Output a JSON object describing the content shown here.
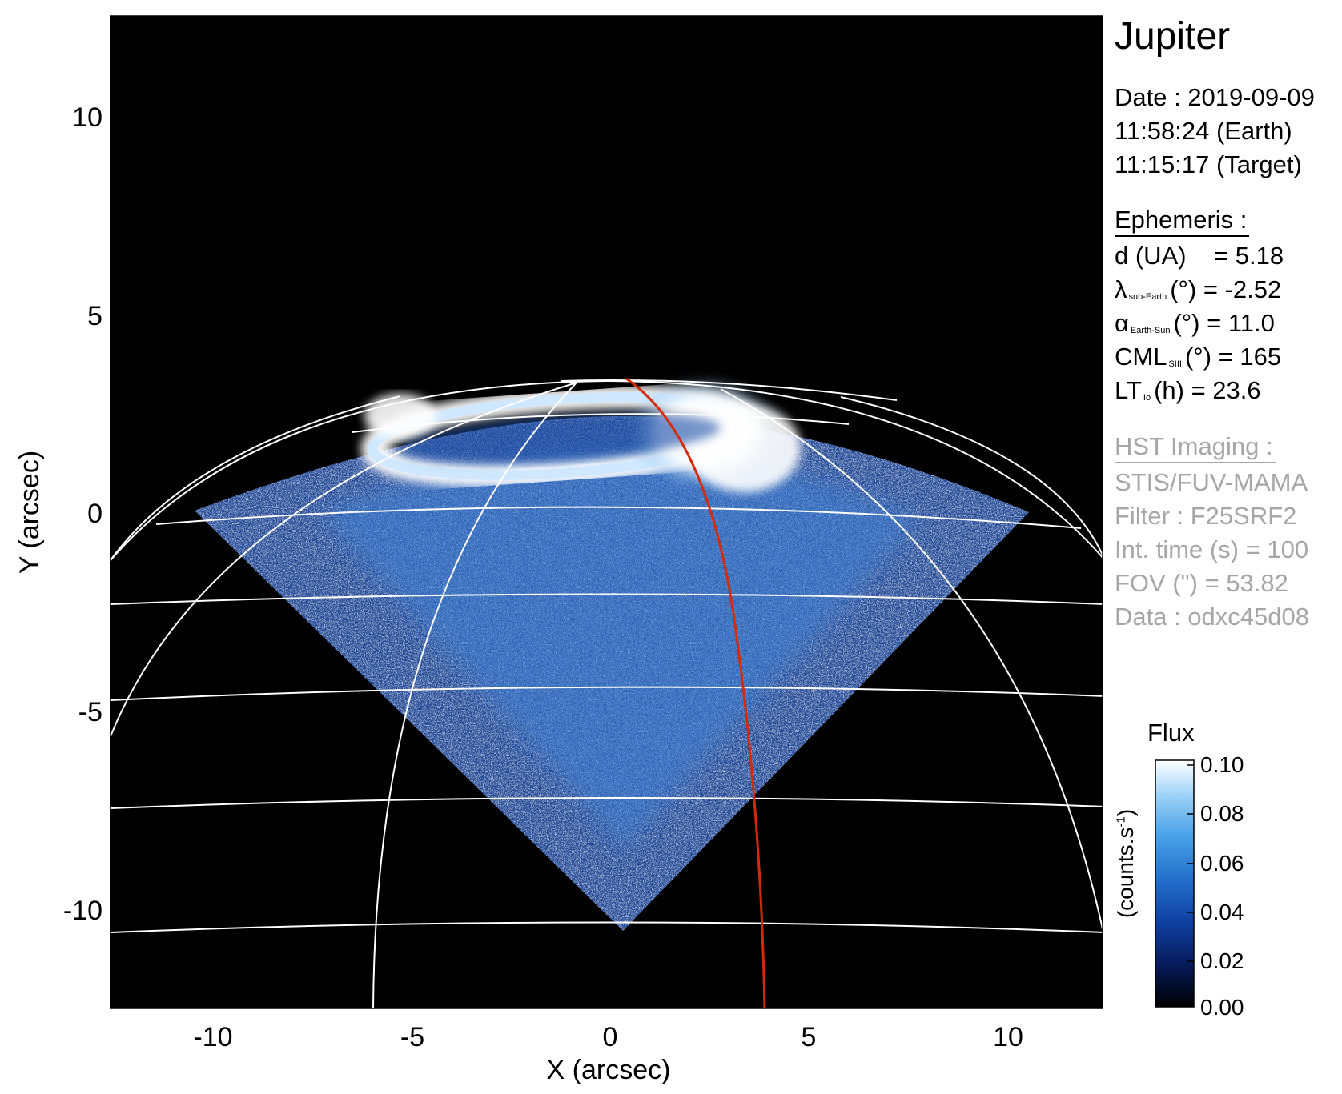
{
  "figure": {
    "title": "Jupiter",
    "observation": {
      "date_line": "Date : 2019-09-09",
      "earth_time": "11:58:24 (Earth)",
      "target_time": "11:15:17 (Target)"
    },
    "ephemeris": {
      "heading": "Ephemeris :",
      "distance": {
        "label": "d (UA)",
        "value": "= 5.18"
      },
      "lat_sub_earth": {
        "symbol": "λ",
        "subscript": "sub-Earth",
        "unit": "(°)",
        "value": "= -2.52"
      },
      "phase_angle": {
        "symbol": "α",
        "subscript": "Earth-Sun",
        "unit": "(°)",
        "value": "= 11.0"
      },
      "cml": {
        "symbol": "CML",
        "subscript": "SIII",
        "unit": "(°)",
        "value": "= 165"
      },
      "lt_io": {
        "symbol": "LT",
        "subscript": "Io",
        "unit": "(h)",
        "value": "= 23.6"
      }
    },
    "hst": {
      "heading": "HST Imaging :",
      "instrument": "STIS/FUV-MAMA",
      "filter": "Filter : F25SRF2",
      "int_time": "Int. time (s) = 100",
      "fov": "FOV (\") = 53.82",
      "data": "Data : odxc45d08"
    },
    "colorbar": {
      "title": "Flux",
      "unit_label": "(counts.s",
      "unit_exp": "-1",
      "unit_close": ")",
      "ticks": [
        "0.10",
        "0.08",
        "0.06",
        "0.04",
        "0.02",
        "0.00"
      ],
      "range": [
        0.0,
        0.1
      ],
      "colors": [
        "#000000",
        "#061b5a",
        "#0f3fa0",
        "#2371cc",
        "#4aa3e8",
        "#9fd3f6",
        "#ffffff"
      ]
    },
    "axes": {
      "xlabel": "X (arcsec)",
      "ylabel": "Y (arcsec)",
      "xlim": [
        -12.5,
        12.5
      ],
      "ylim": [
        -12.5,
        12.5
      ],
      "xticks": [
        "-10",
        "-5",
        "0",
        "5",
        "10"
      ],
      "yticks": [
        "10",
        "5",
        "0",
        "-5",
        "-10"
      ],
      "background": "#000000",
      "grid_color": "#ffffff",
      "io_footprint_color": "#d42a08",
      "emission_color": "#2f6fd0"
    }
  }
}
